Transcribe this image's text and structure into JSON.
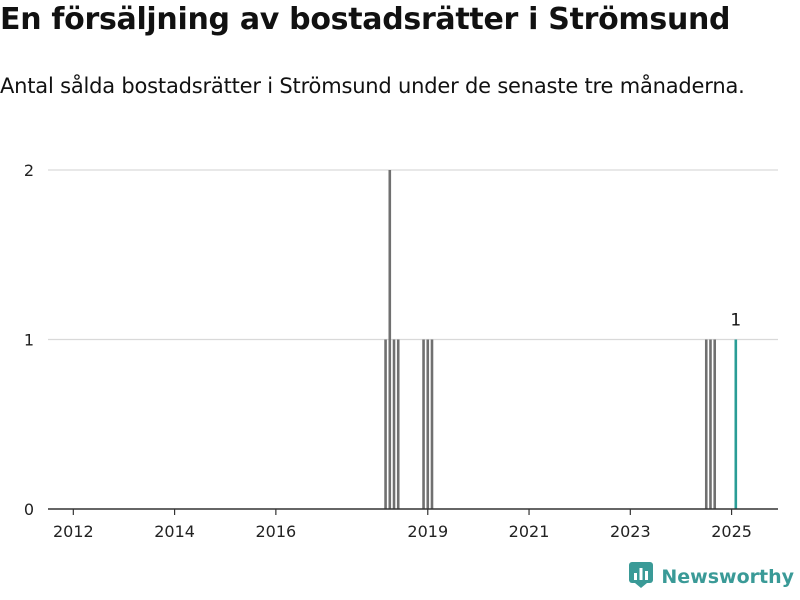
{
  "header": {
    "title": "En försäljning av bostadsrätter i Strömsund",
    "subtitle": "Antal sålda bostadsrätter i Strömsund under de senaste tre månaderna."
  },
  "branding": {
    "name": "Newsworthy",
    "icon": "newsworthy-logo-icon",
    "color": "#3a9a97"
  },
  "colors": {
    "bar": "#707070",
    "highlight": "#2a9d96",
    "grid": "#d9d9d9",
    "axis": "#333333"
  },
  "chart_data": {
    "type": "bar",
    "title": "",
    "xlabel": "",
    "ylabel": "",
    "ylim": [
      0,
      2
    ],
    "yticks": [
      0,
      1,
      2
    ],
    "xticks": [
      {
        "label": "2012",
        "x": "2012-01"
      },
      {
        "label": "2014",
        "x": "2014-01"
      },
      {
        "label": "2016",
        "x": "2016-01"
      },
      {
        "label": "2019",
        "x": "2019-01"
      },
      {
        "label": "2021",
        "x": "2021-01"
      },
      {
        "label": "2023",
        "x": "2023-01"
      },
      {
        "label": "2025",
        "x": "2025-01"
      }
    ],
    "xlim": [
      "2011-07",
      "2025-12"
    ],
    "grid": true,
    "legend": "none",
    "bars": [
      {
        "x": "2018-03",
        "value": 1
      },
      {
        "x": "2018-04",
        "value": 2
      },
      {
        "x": "2018-05",
        "value": 1
      },
      {
        "x": "2018-06",
        "value": 1
      },
      {
        "x": "2018-12",
        "value": 1
      },
      {
        "x": "2019-01",
        "value": 1
      },
      {
        "x": "2019-02",
        "value": 1
      },
      {
        "x": "2024-07",
        "value": 1
      },
      {
        "x": "2024-08",
        "value": 1
      },
      {
        "x": "2024-09",
        "value": 1
      },
      {
        "x": "2025-02",
        "value": 1,
        "highlight": true,
        "label": "1"
      }
    ]
  }
}
